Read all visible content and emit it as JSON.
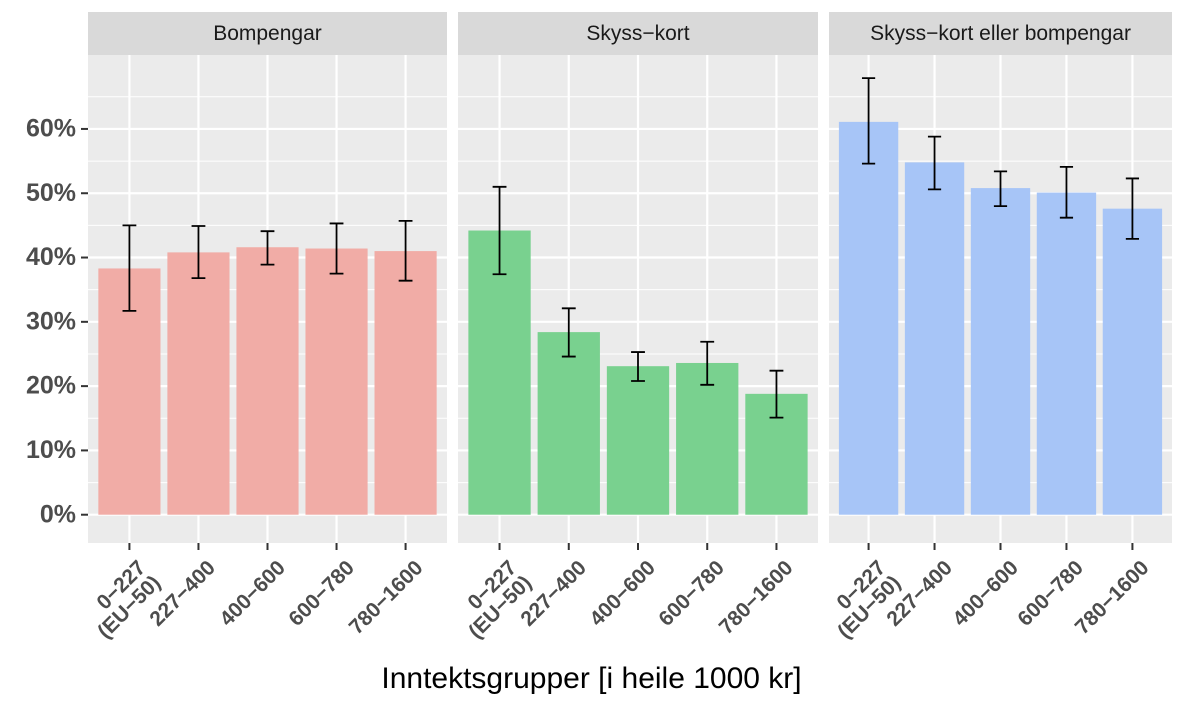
{
  "chart_data": {
    "type": "bar",
    "x_label": "Inntektsgrupper [i heile 1000 kr]",
    "categories": [
      "0−227\n(EU−50)",
      "227−400",
      "400−600",
      "600−780",
      "780−1600"
    ],
    "ylim": [
      -4.4,
      71.5
    ],
    "yticks": [
      {
        "value": 0,
        "label": "0%"
      },
      {
        "value": 10,
        "label": "10%"
      },
      {
        "value": 20,
        "label": "20%"
      },
      {
        "value": 30,
        "label": "30%"
      },
      {
        "value": 40,
        "label": "40%"
      },
      {
        "value": 50,
        "label": "50%"
      },
      {
        "value": 60,
        "label": "60%"
      }
    ],
    "minor_yticks": [
      5,
      15,
      25,
      35,
      45,
      55,
      65
    ],
    "grid": true,
    "series": [
      {
        "name": "Bompengar",
        "color": "#f1aca6",
        "values": [
          38.3,
          40.8,
          41.6,
          41.4,
          41.0
        ],
        "ymin": [
          31.7,
          36.8,
          38.9,
          37.5,
          36.4
        ],
        "ymax": [
          45.0,
          44.9,
          44.1,
          45.3,
          45.7
        ]
      },
      {
        "name": "Skyss−kort",
        "color": "#79d18f",
        "values": [
          44.2,
          28.4,
          23.1,
          23.6,
          18.8
        ],
        "ymin": [
          37.4,
          24.6,
          20.8,
          20.2,
          15.1
        ],
        "ymax": [
          51.0,
          32.1,
          25.3,
          26.9,
          22.4
        ]
      },
      {
        "name": "Skyss−kort eller bompengar",
        "color": "#a7c5f7",
        "values": [
          61.1,
          54.8,
          50.8,
          50.1,
          47.6
        ],
        "ymin": [
          54.6,
          50.6,
          48.0,
          46.2,
          42.9
        ],
        "ymax": [
          67.9,
          58.8,
          53.4,
          54.1,
          52.3
        ]
      }
    ]
  }
}
